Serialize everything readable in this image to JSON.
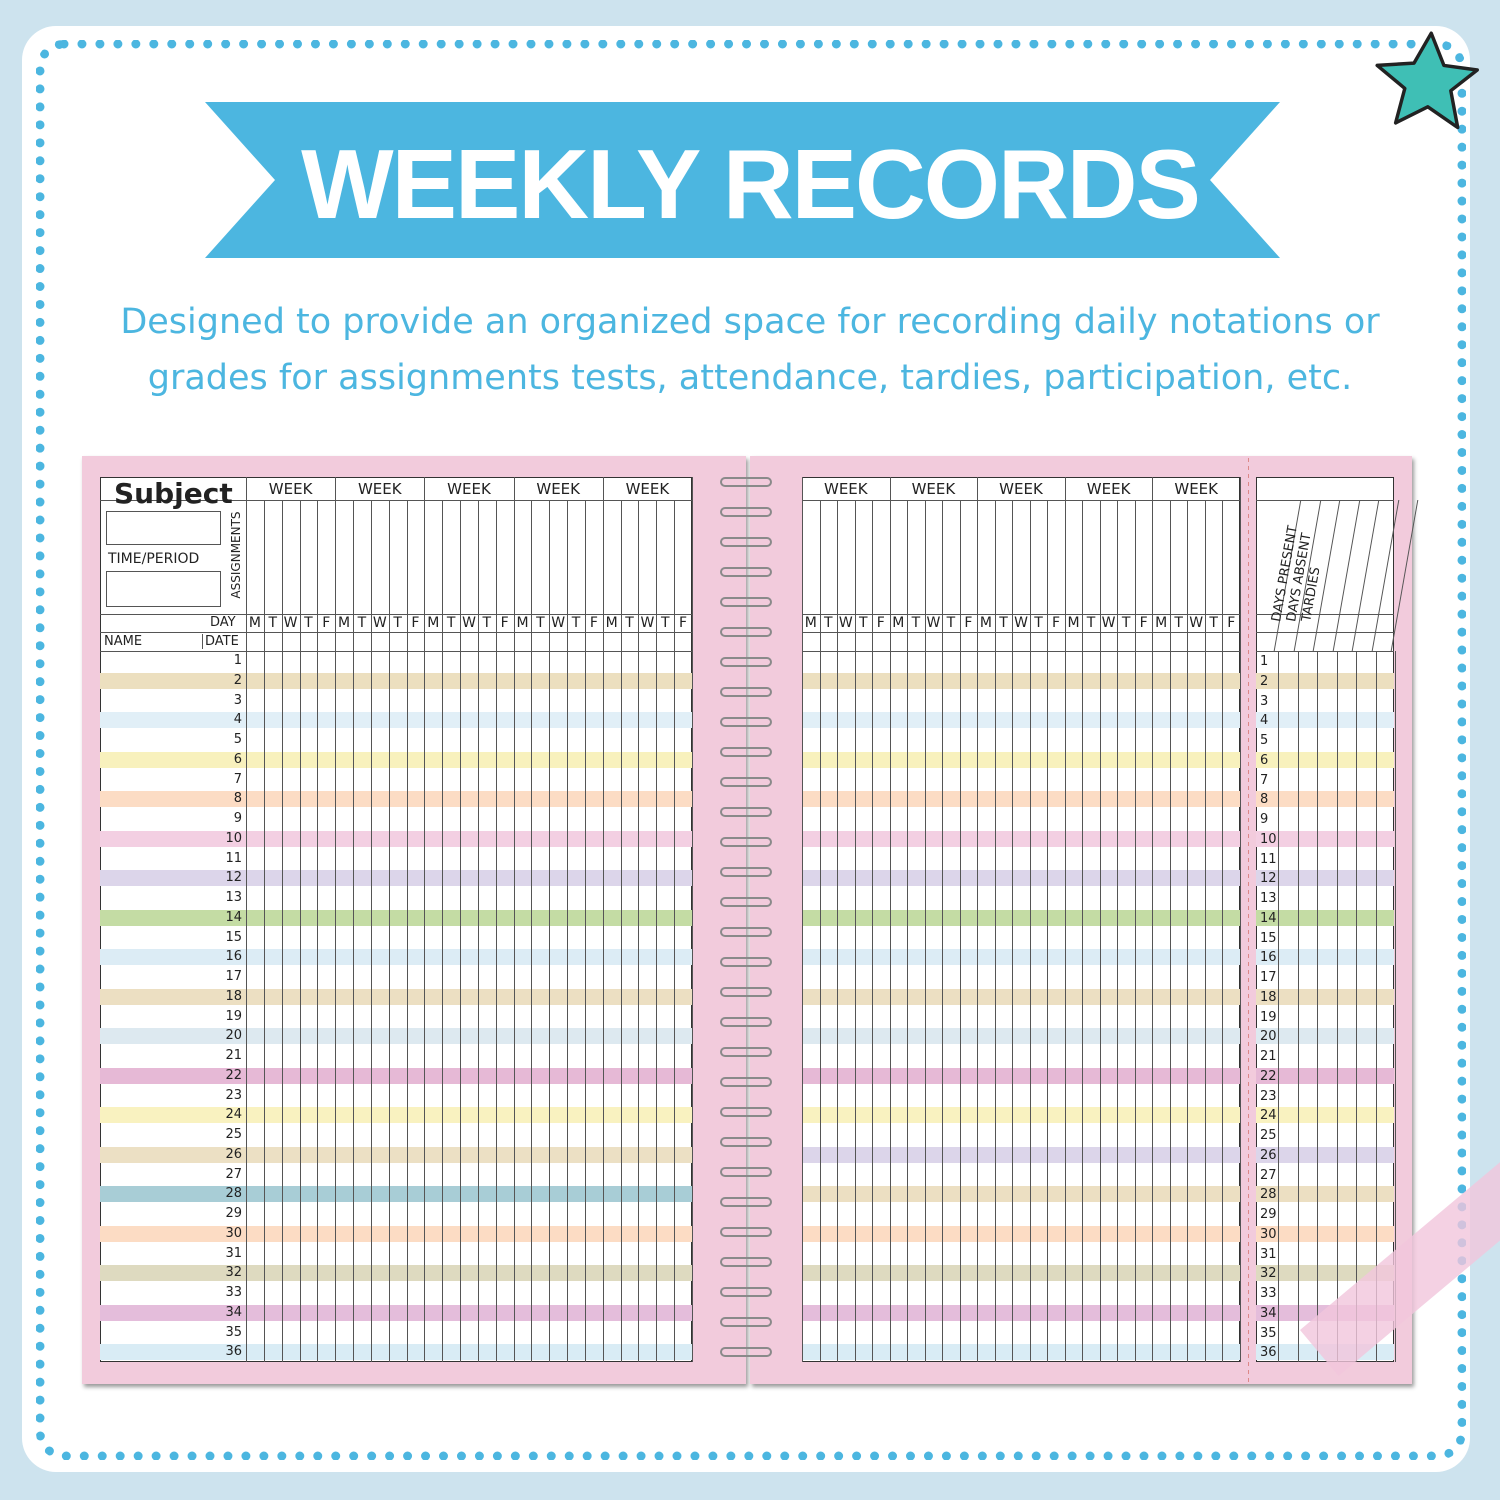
{
  "header": {
    "title": "WEEKLY RECORDS",
    "subtitle_line1": "Designed to provide an organized space for recording daily notations or",
    "subtitle_line2": "grades for assignments tests, attendance, tardies, participation, etc."
  },
  "colors": {
    "background": "#cde3ee",
    "accent": "#4cb6e0",
    "star": "#3fbfb5",
    "page": "#f2cbdc"
  },
  "planner": {
    "subject_label": "Subject",
    "time_period_label": "TIME/PERIOD",
    "assignments_label": "ASSIGNMENTS",
    "day_label": "DAY",
    "name_label": "NAME",
    "date_label": "DATE",
    "week_label": "WEEK",
    "weekdays": [
      "M",
      "T",
      "W",
      "T",
      "F"
    ],
    "summary_labels": [
      "DAYS PRESENT",
      "DAYS ABSENT",
      "TARDIES"
    ],
    "rows": 36,
    "left_row_colors": {
      "2": "#ecdfbf",
      "4": "#e1eff7",
      "6": "#f8f1bd",
      "8": "#fcdcc4",
      "10": "#f3cfe2",
      "12": "#dcd5ea",
      "14": "#c4dca4",
      "16": "#dcecf5",
      "18": "#ecdfc2",
      "20": "#dde9f0",
      "22": "#e6b9d6",
      "24": "#f9f2c0",
      "26": "#ece0c4",
      "28": "#a8cdd6",
      "30": "#fcdcc4",
      "32": "#dedac0",
      "34": "#e4bddb",
      "36": "#d9ecf5"
    },
    "right_row_overrides": {
      "26": "#dcd5ea",
      "28": "#ecdfc2"
    }
  }
}
